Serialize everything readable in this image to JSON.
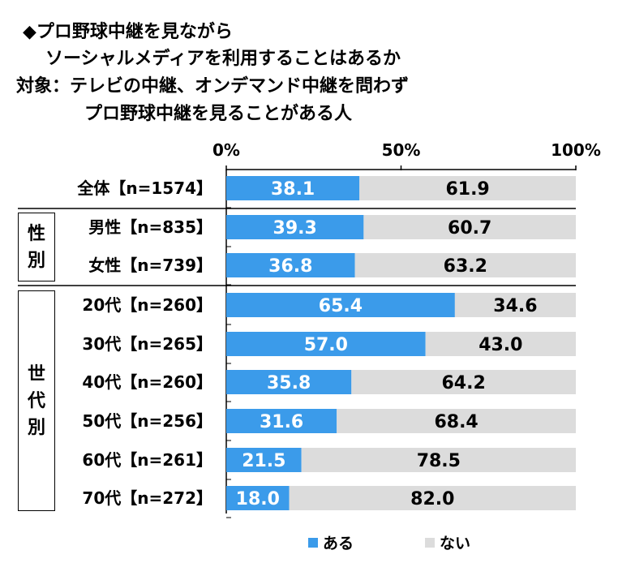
{
  "title_lines": [
    "◆プロ野球中継を見ながら",
    "ソーシャルメディアを利用することはあるか",
    "対象：テレビの中継、オンデマンド中継を問わず",
    "プロ野球中継を見ることがある人"
  ],
  "colors": {
    "aru": "#3b9bea",
    "nai": "#dcdcdc",
    "axis": "#000000"
  },
  "groups": [
    {
      "label": [
        "性",
        "別"
      ]
    },
    {
      "label": [
        "世",
        "代",
        "別"
      ]
    }
  ],
  "chart_data": {
    "type": "bar",
    "orientation": "horizontal",
    "stacked": true,
    "xlim": [
      0,
      100
    ],
    "xticks": [
      "0%",
      "50%",
      "100%"
    ],
    "categories": [
      "全体【n=1574】",
      "男性【n=835】",
      "女性【n=739】",
      "20代【n=260】",
      "30代【n=265】",
      "40代【n=260】",
      "50代【n=256】",
      "60代【n=261】",
      "70代【n=272】"
    ],
    "series": [
      {
        "name": "ある",
        "values": [
          38.1,
          39.3,
          36.8,
          65.4,
          57.0,
          35.8,
          31.6,
          21.5,
          18.0
        ],
        "labels": [
          "38.1",
          "39.3",
          "36.8",
          "65.4",
          "57.0",
          "35.8",
          "31.6",
          "21.5",
          "18.0"
        ]
      },
      {
        "name": "ない",
        "values": [
          61.9,
          60.7,
          63.2,
          34.6,
          43.0,
          64.2,
          68.4,
          78.5,
          82.0
        ],
        "labels": [
          "61.9",
          "60.7",
          "63.2",
          "34.6",
          "43.0",
          "64.2",
          "68.4",
          "78.5",
          "82.0"
        ]
      }
    ],
    "legend_position": "bottom"
  }
}
